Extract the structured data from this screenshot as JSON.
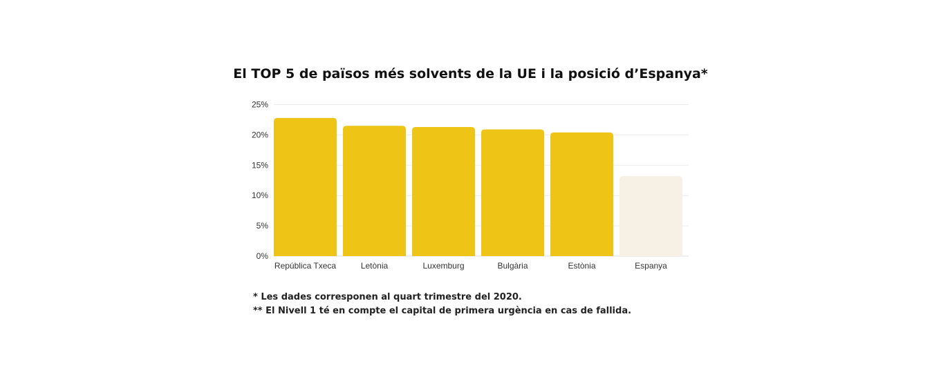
{
  "chart_data": {
    "type": "bar",
    "title": "El TOP 5 de països més solvents de la UE i la posició d’Espanya*",
    "categories": [
      "República Txeca",
      "Letònia",
      "Luxemburg",
      "Bulgària",
      "Estònia",
      "Espanya"
    ],
    "values": [
      22.8,
      21.5,
      21.3,
      20.9,
      20.4,
      13.2
    ],
    "ylim": [
      0,
      25
    ],
    "yticks": [
      "0%",
      "5%",
      "10%",
      "15%",
      "20%",
      "25%"
    ],
    "xlabel": "",
    "ylabel": "",
    "grid": true,
    "colors": {
      "highlight": "#EEC516",
      "spain": "#F6F0E5",
      "grid": "#EBEBEB"
    }
  },
  "notes": [
    "* Les dades corresponen al quart trimestre del 2020.",
    "** El Nivell 1 té en compte el capital de primera urgència en cas de fallida."
  ]
}
